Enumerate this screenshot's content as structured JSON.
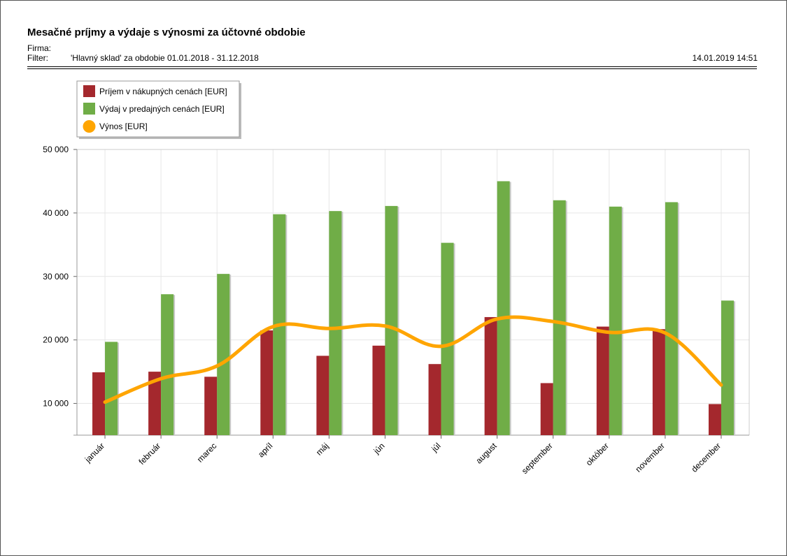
{
  "report": {
    "title": "Mesačné príjmy a výdaje s výnosmi za účtovné obdobie",
    "firma_label": "Firma:",
    "filter_label": "Filter:",
    "filter_value": "'Hlavný sklad' za obdobie 01.01.2018 - 31.12.2018",
    "timestamp": "14.01.2019 14:51"
  },
  "chart_data": {
    "type": "bar",
    "categories": [
      "január",
      "február",
      "marec",
      "apríl",
      "máj",
      "jún",
      "júl",
      "august",
      "september",
      "október",
      "november",
      "december"
    ],
    "series": [
      {
        "name": "Príjem v nákupných cenách [EUR]",
        "type": "bar",
        "color": "#a4282d",
        "values": [
          14900,
          15000,
          14200,
          21500,
          17500,
          19100,
          16200,
          23600,
          13200,
          22100,
          21700,
          9900
        ]
      },
      {
        "name": "Výdaj v predajných cenách [EUR]",
        "type": "bar",
        "color": "#70ad47",
        "values": [
          19700,
          27200,
          30400,
          39800,
          40300,
          41100,
          35300,
          45000,
          42000,
          41000,
          41700,
          26200
        ]
      },
      {
        "name": "Výnos [EUR]",
        "type": "line",
        "color": "#ffa500",
        "values": [
          10200,
          13900,
          15900,
          22100,
          21800,
          22200,
          19000,
          23300,
          22900,
          21200,
          21100,
          12900
        ]
      }
    ],
    "y_ticks": [
      "50 000",
      "40 000",
      "30 000",
      "20 000",
      "10 000"
    ],
    "ylim": [
      5000,
      50000
    ],
    "grid": true,
    "legend_position": "top-left",
    "xlabel": "",
    "ylabel": ""
  }
}
